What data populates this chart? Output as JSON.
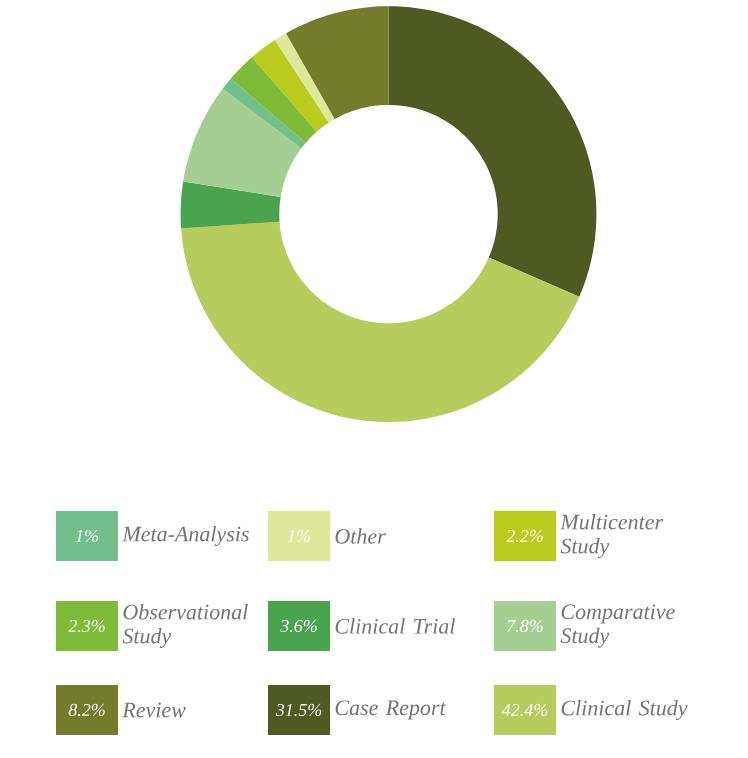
{
  "chart_data": {
    "type": "donut",
    "categories": [
      "Case Report",
      "Clinical Study",
      "Clinical Trial",
      "Comparative Study",
      "Meta-Analysis",
      "Observational Study",
      "Multicenter Study",
      "Other",
      "Review"
    ],
    "values": [
      31.5,
      42.4,
      3.6,
      7.8,
      1,
      2.3,
      2.2,
      1,
      8.2
    ],
    "value_labels": [
      "31.5%",
      "42.4%",
      "3.6%",
      "7.8%",
      "1%",
      "2.3%",
      "2.2%",
      "1%",
      "8.2%"
    ],
    "colors": [
      "#4f5a22",
      "#b6cc5c",
      "#4aa44e",
      "#a5cf92",
      "#72bf8a",
      "#7dbb38",
      "#b9cc1e",
      "#dde89a",
      "#727c2a"
    ],
    "legend": "bottom"
  }
}
